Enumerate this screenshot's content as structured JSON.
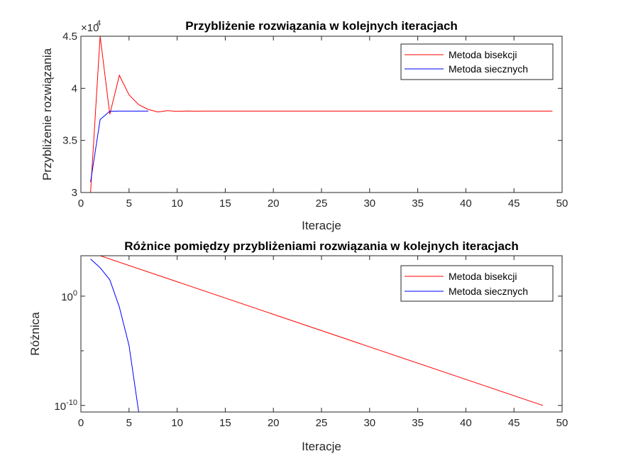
{
  "chart_data": [
    {
      "type": "line",
      "title": "Przybliżenie rozwiązania w kolejnych iteracjach",
      "xlabel": "Iteracje",
      "ylabel": "Przybliżenie rozwiązania",
      "y_exponent_label": "×10",
      "y_exponent_power": "4",
      "xlim": [
        0,
        50
      ],
      "ylim": [
        3,
        4.5
      ],
      "x_ticks": [
        0,
        5,
        10,
        15,
        20,
        25,
        30,
        35,
        40,
        45,
        50
      ],
      "y_ticks": [
        3,
        3.5,
        4,
        4.5
      ],
      "legend_position": "top-right",
      "series": [
        {
          "name": "Metoda bisekcji",
          "color": "#ff0000",
          "x": [
            1,
            2,
            3,
            4,
            5,
            6,
            7,
            8,
            9,
            10,
            11,
            12,
            13,
            14,
            15,
            20,
            25,
            30,
            35,
            40,
            45,
            49
          ],
          "y": [
            3.0,
            4.5,
            3.75,
            4.125,
            3.9375,
            3.84375,
            3.796875,
            3.7734,
            3.7852,
            3.7793,
            3.7822,
            3.7808,
            3.7815,
            3.7812,
            3.7813,
            3.7813,
            3.7813,
            3.7813,
            3.7813,
            3.7813,
            3.7813,
            3.7813
          ]
        },
        {
          "name": "Metoda siecznych",
          "color": "#0000ff",
          "x": [
            1,
            2,
            3,
            4,
            5,
            6,
            7
          ],
          "y": [
            3.1,
            3.7,
            3.78,
            3.7813,
            3.7813,
            3.7813,
            3.7813
          ]
        }
      ]
    },
    {
      "type": "line",
      "title": "Różnice pomiędzy przybliżeniami rozwiązania w kolejnych iteracjach",
      "xlabel": "Iteracje",
      "ylabel": "Różnica",
      "y_scale": "log",
      "xlim": [
        0,
        50
      ],
      "ylim_log10": [
        -10.6,
        3.7
      ],
      "x_ticks": [
        0,
        5,
        10,
        15,
        20,
        25,
        30,
        35,
        40,
        45,
        50
      ],
      "y_tick_labels": [
        {
          "base": "10",
          "exp": "0",
          "log10": 0
        },
        {
          "base": "10",
          "exp": "-10",
          "log10": -10
        }
      ],
      "y_minor_ticks_log10": [
        -5
      ],
      "legend_position": "top-right",
      "series": [
        {
          "name": "Metoda bisekcji",
          "color": "#ff0000",
          "x": [
            1,
            48
          ],
          "log10_y": [
            4.0,
            -10.0
          ]
        },
        {
          "name": "Metoda siecznych",
          "color": "#0000ff",
          "x": [
            1,
            2,
            3,
            4,
            5,
            6
          ],
          "log10_y": [
            3.4,
            2.6,
            1.5,
            -1.0,
            -4.5,
            -10.6
          ]
        }
      ]
    }
  ]
}
